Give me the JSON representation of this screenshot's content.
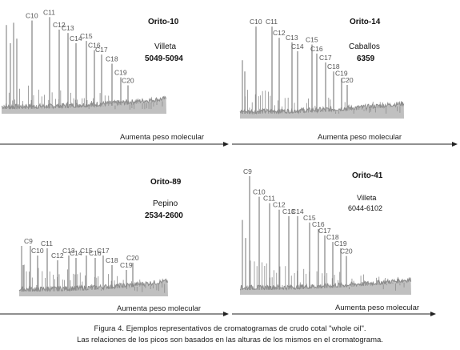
{
  "chart_data": [
    {
      "type": "line",
      "title": "Orito-10",
      "info": [
        "Villeta",
        "5049-5094"
      ],
      "xlabel": "Aumenta peso molecular",
      "ylabel": "",
      "peak_labels": [
        "C10",
        "C11",
        "C12",
        "C13",
        "C14",
        "C15",
        "C16",
        "C17",
        "C18",
        "C19",
        "C20"
      ],
      "peak_heights": [
        0.82,
        0.85,
        0.74,
        0.71,
        0.62,
        0.64,
        0.56,
        0.52,
        0.44,
        0.32,
        0.25
      ],
      "ylim": [
        0,
        1
      ]
    },
    {
      "type": "line",
      "title": "Orito-14",
      "info": [
        "Caballos",
        "6359"
      ],
      "xlabel": "Aumenta peso molecular",
      "ylabel": "",
      "peak_labels": [
        "C10",
        "C11",
        "C12",
        "C13",
        "C14",
        "C15",
        "C16",
        "C17",
        "C18",
        "C19",
        "C20"
      ],
      "peak_heights": [
        0.82,
        0.82,
        0.72,
        0.68,
        0.6,
        0.66,
        0.58,
        0.5,
        0.42,
        0.36,
        0.3
      ],
      "ylim": [
        0,
        1
      ]
    },
    {
      "type": "line",
      "title": "Orito-89",
      "info": [
        "Pepino",
        "2534-2600"
      ],
      "xlabel": "Aumenta peso molecular",
      "ylabel": "",
      "peak_labels": [
        "C9",
        "C10",
        "C11",
        "C12",
        "C13",
        "C14",
        "C15",
        "C16",
        "C17",
        "C18",
        "C19",
        "C20"
      ],
      "peak_heights": [
        0.42,
        0.34,
        0.4,
        0.3,
        0.34,
        0.32,
        0.34,
        0.32,
        0.34,
        0.26,
        0.22,
        0.28
      ],
      "ylim": [
        0,
        1
      ]
    },
    {
      "type": "line",
      "title": "Orito-41",
      "info": [
        "Villeta",
        "6044-6102"
      ],
      "xlabel": "Aumenta peso molecular",
      "ylabel": "",
      "peak_labels": [
        "C9",
        "C10",
        "C11",
        "C12",
        "C13",
        "C14",
        "C15",
        "C16",
        "C17",
        "C18",
        "C19",
        "C20"
      ],
      "peak_heights": [
        0.92,
        0.76,
        0.71,
        0.66,
        0.61,
        0.61,
        0.56,
        0.51,
        0.46,
        0.41,
        0.36,
        0.3
      ],
      "ylim": [
        0,
        1
      ]
    }
  ],
  "caption": {
    "line1": "Figura 4. Ejemplos representativos de cromatogramas  de crudo cotal \"whole oil\".",
    "line2": "Las relaciones de los picos son basados en las alturas de los mismos en el  cromatograma."
  },
  "colors": {
    "trace": "#8c8c8c",
    "axis": "#222222",
    "label": "#555555"
  }
}
